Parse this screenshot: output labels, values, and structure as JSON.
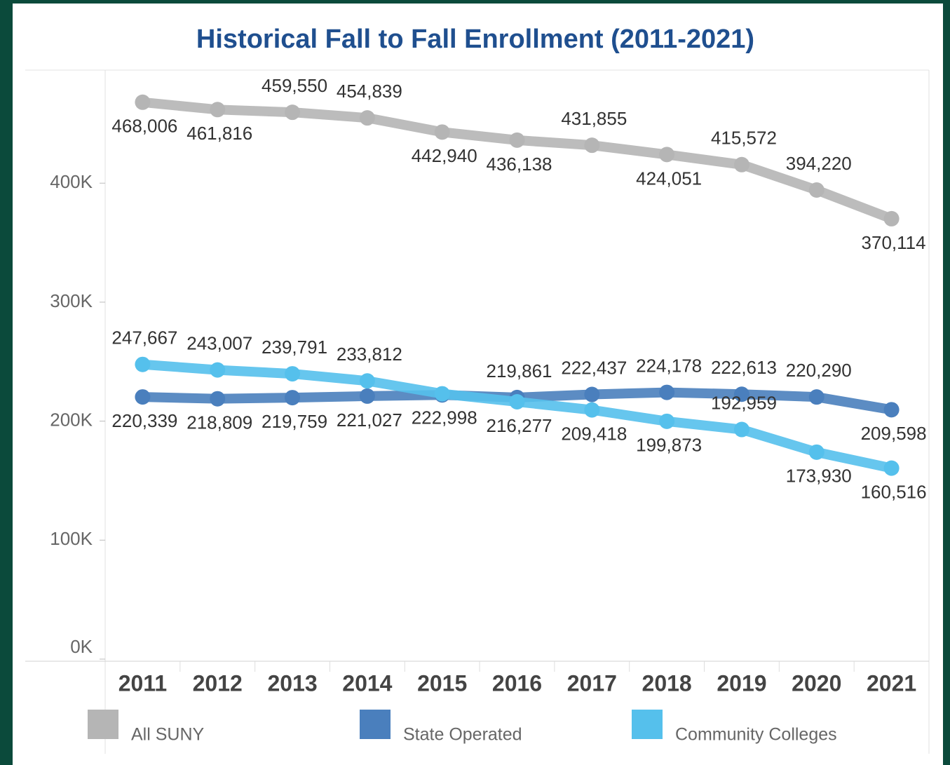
{
  "chart_data": {
    "type": "line",
    "title": "Historical Fall to Fall Enrollment (2011-2021)",
    "categories": [
      "2011",
      "2012",
      "2013",
      "2014",
      "2015",
      "2016",
      "2017",
      "2018",
      "2019",
      "2020",
      "2021"
    ],
    "series": [
      {
        "name": "All SUNY",
        "color": "#b5b5b5",
        "values": [
          468006,
          461816,
          459550,
          454839,
          442940,
          436138,
          431855,
          424051,
          415572,
          394220,
          370114
        ],
        "value_labels": [
          "468,006",
          "461,816",
          "459,550",
          "454,839",
          "442,940",
          "436,138",
          "431,855",
          "424,051",
          "415,572",
          "394,220",
          "370,114"
        ]
      },
      {
        "name": "State Operated",
        "color": "#4a7fbd",
        "values": [
          220339,
          218809,
          219759,
          221027,
          222000,
          219861,
          222437,
          224178,
          222613,
          220290,
          209598
        ],
        "value_labels": [
          "220,339",
          "218,809",
          "219,759",
          "221,027",
          null,
          "219,861",
          "222,437",
          "224,178",
          "222,613",
          "220,290",
          "209,598"
        ]
      },
      {
        "name": "Community Colleges",
        "color": "#55c0ec",
        "values": [
          247667,
          243007,
          239791,
          233812,
          222998,
          216277,
          209418,
          199873,
          192959,
          173930,
          160516
        ],
        "value_labels": [
          "247,667",
          "243,007",
          "239,791",
          "233,812",
          "222,998",
          "216,277",
          "209,418",
          "199,873",
          "192,959",
          "173,930",
          "160,516"
        ]
      }
    ],
    "ylim": [
      0,
      495000
    ],
    "yticks": [
      {
        "value": 0,
        "label": "0K"
      },
      {
        "value": 100000,
        "label": "100K"
      },
      {
        "value": 200000,
        "label": "200K"
      },
      {
        "value": 300000,
        "label": "300K"
      },
      {
        "value": 400000,
        "label": "400K"
      }
    ],
    "legend": "bottom"
  }
}
